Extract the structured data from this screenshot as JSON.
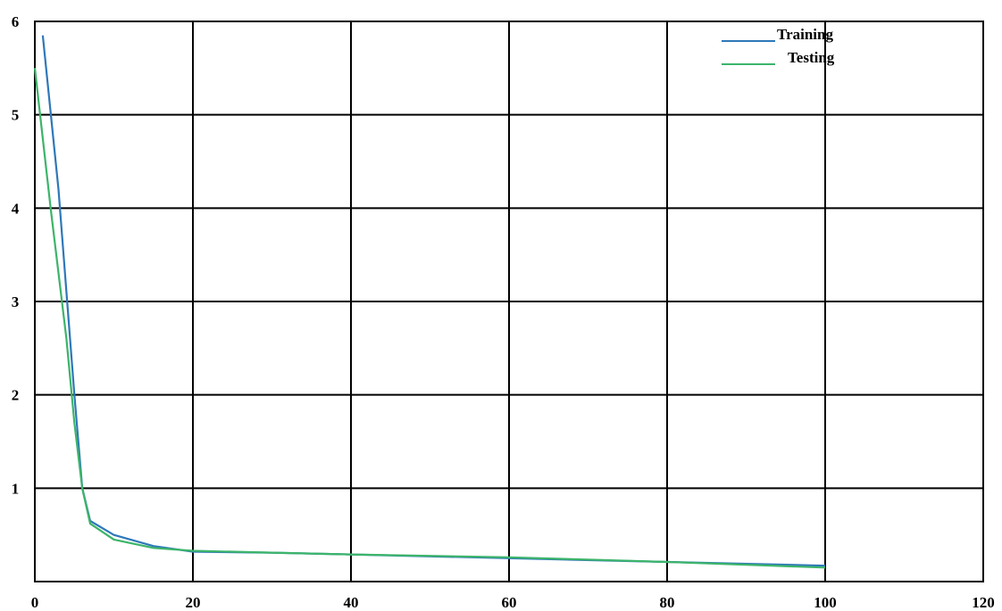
{
  "chart_data": {
    "type": "line",
    "title": "",
    "xlabel": "",
    "ylabel": "",
    "xlim": [
      0,
      120
    ],
    "ylim": [
      0,
      6
    ],
    "grid": true,
    "legend_position": "top-right",
    "x_ticks": [
      "0",
      "20",
      "40",
      "60",
      "80",
      "100",
      "120"
    ],
    "y_ticks": [
      "1",
      "2",
      "3",
      "4",
      "5",
      "6"
    ],
    "series": [
      {
        "name": "Training",
        "color": "#2e78b8",
        "x": [
          1,
          3,
          5,
          6,
          7,
          10,
          15,
          20,
          30,
          40,
          60,
          80,
          100
        ],
        "y": [
          5.85,
          4.2,
          2.0,
          1.0,
          0.65,
          0.5,
          0.38,
          0.32,
          0.31,
          0.29,
          0.25,
          0.21,
          0.17
        ]
      },
      {
        "name": "Testing",
        "color": "#3cb46a",
        "x": [
          0,
          2,
          4,
          5,
          6,
          7,
          10,
          15,
          20,
          30,
          40,
          60,
          80,
          100
        ],
        "y": [
          5.5,
          4.0,
          2.6,
          1.7,
          1.0,
          0.62,
          0.45,
          0.36,
          0.33,
          0.31,
          0.29,
          0.26,
          0.21,
          0.15
        ]
      }
    ]
  }
}
